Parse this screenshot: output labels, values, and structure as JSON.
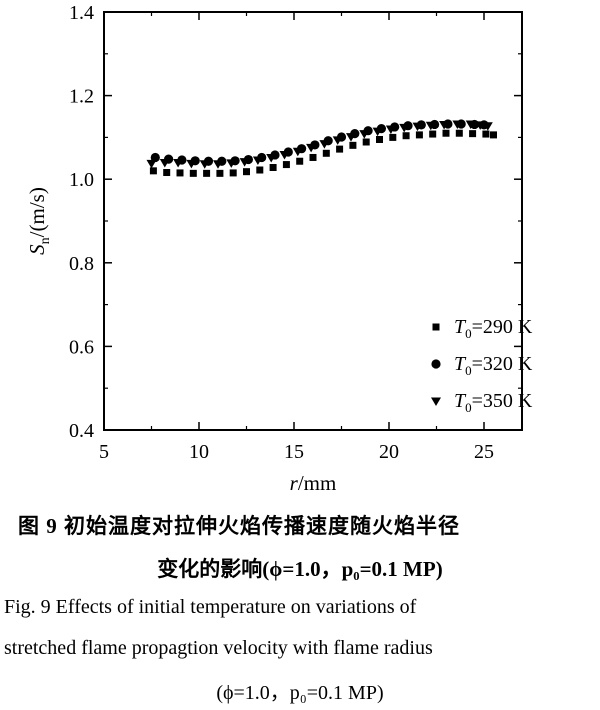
{
  "chart_data": {
    "type": "scatter",
    "xlabel_var": "r",
    "xlabel_unit": "/mm",
    "ylabel_var": "S",
    "ylabel_sub": "n",
    "ylabel_unit": "/(m/s)",
    "xlim": [
      5,
      27
    ],
    "ylim": [
      0.4,
      1.4
    ],
    "xticks": [
      "5",
      "10",
      "15",
      "20",
      "25"
    ],
    "yticks": [
      "0.4",
      "0.6",
      "0.8",
      "1.0",
      "1.2",
      "1.4"
    ],
    "grid": false,
    "legend_position": "bottom-right",
    "series": [
      {
        "name": "T0=290 K",
        "legend_var": "T",
        "legend_sub": "0",
        "legend_value": "=290 K",
        "marker": "square",
        "x": [
          7.6,
          8.3,
          9.0,
          9.7,
          10.4,
          11.1,
          11.8,
          12.5,
          13.2,
          13.9,
          14.6,
          15.3,
          16.0,
          16.7,
          17.4,
          18.1,
          18.8,
          19.5,
          20.2,
          20.9,
          21.6,
          22.3,
          23.0,
          23.7,
          24.4,
          25.1,
          25.5
        ],
        "y": [
          1.02,
          1.016,
          1.015,
          1.014,
          1.014,
          1.014,
          1.015,
          1.018,
          1.022,
          1.028,
          1.035,
          1.043,
          1.052,
          1.062,
          1.072,
          1.081,
          1.089,
          1.095,
          1.1,
          1.104,
          1.106,
          1.108,
          1.11,
          1.11,
          1.109,
          1.108,
          1.106
        ]
      },
      {
        "name": "T0=320 K",
        "legend_var": "T",
        "legend_sub": "0",
        "legend_value": "=320 K",
        "marker": "circle",
        "x": [
          7.7,
          8.4,
          9.1,
          9.8,
          10.5,
          11.2,
          11.9,
          12.6,
          13.3,
          14.0,
          14.7,
          15.4,
          16.1,
          16.8,
          17.5,
          18.2,
          18.9,
          19.6,
          20.3,
          21.0,
          21.7,
          22.4,
          23.1,
          23.8,
          24.5,
          25.0
        ],
        "y": [
          1.052,
          1.048,
          1.046,
          1.044,
          1.043,
          1.043,
          1.044,
          1.047,
          1.052,
          1.058,
          1.065,
          1.073,
          1.082,
          1.092,
          1.101,
          1.109,
          1.116,
          1.121,
          1.125,
          1.128,
          1.13,
          1.131,
          1.132,
          1.132,
          1.131,
          1.13
        ]
      },
      {
        "name": "T0=350 K",
        "legend_var": "T",
        "legend_sub": "0",
        "legend_value": "=350 K",
        "marker": "triangle-down",
        "x": [
          7.5,
          8.2,
          8.9,
          9.6,
          10.3,
          11.0,
          11.7,
          12.4,
          13.1,
          13.8,
          14.5,
          15.2,
          15.9,
          16.6,
          17.3,
          18.0,
          18.7,
          19.4,
          20.1,
          20.8,
          21.5,
          22.2,
          22.9,
          23.6,
          24.3,
          24.8,
          25.2
        ],
        "y": [
          1.038,
          1.04,
          1.04,
          1.038,
          1.037,
          1.037,
          1.039,
          1.042,
          1.046,
          1.052,
          1.059,
          1.067,
          1.076,
          1.085,
          1.094,
          1.102,
          1.109,
          1.115,
          1.12,
          1.124,
          1.127,
          1.129,
          1.131,
          1.132,
          1.132,
          1.13,
          1.128
        ]
      }
    ]
  },
  "caption": {
    "cn_line1": "图 9   初始温度对拉伸火焰传播速度随火焰半径",
    "cn_line2": "变化的影响(ϕ=1.0，p₀=0.1 MP)",
    "en_line1": "Fig. 9   Effects of initial temperature on variations of",
    "en_line2": "stretched flame propagtion velocity with flame radius",
    "en_line3": "(ϕ=1.0，p₀=0.1 MP)"
  }
}
